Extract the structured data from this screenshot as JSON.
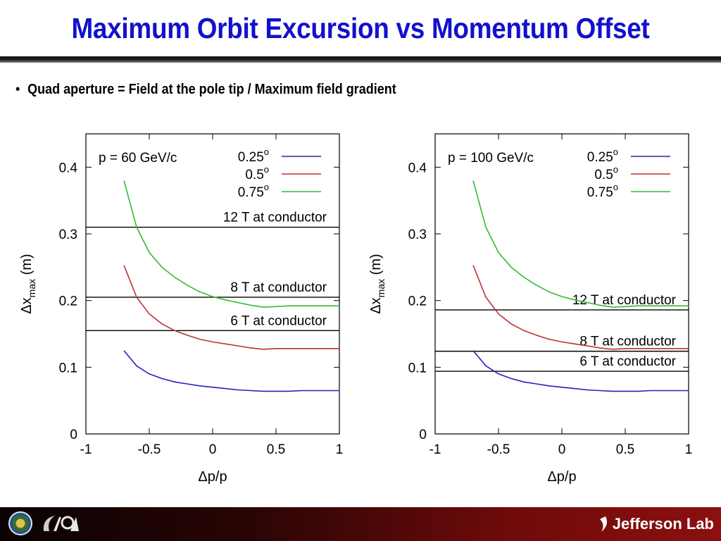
{
  "slide": {
    "title": "Maximum Orbit Excursion vs Momentum Offset",
    "bullet": "Quad aperture = Field at the pole tip / Maximum field gradient",
    "footer": {
      "logos": [
        "doe-seal",
        "jsa-logo"
      ],
      "brand": "Jefferson Lab"
    }
  },
  "colors": {
    "title": "#1111cc",
    "series_025": "#2222bb",
    "series_05": "#bb3333",
    "series_075": "#33bb33",
    "threshold": "#000000",
    "footer_dark": "#1a0303",
    "footer_red": "#8c1010"
  },
  "chart_data": [
    {
      "type": "line",
      "annotation": "p = 60 GeV/c",
      "xlabel": "Δp/p",
      "ylabel": "Δx",
      "ylabel_sub": "max",
      "ylabel_unit": " (m)",
      "xlim": [
        -1,
        1
      ],
      "ylim": [
        0,
        0.45
      ],
      "xticks": [
        -1,
        -0.5,
        0,
        0.5,
        1
      ],
      "xtick_labels": [
        "-1",
        "-0.5",
        "0",
        "0.5",
        "1"
      ],
      "yticks": [
        0,
        0.1,
        0.2,
        0.3,
        0.4
      ],
      "ytick_labels": [
        "0",
        "0.1",
        "0.2",
        "0.3",
        "0.4"
      ],
      "legend_position": "top-right",
      "series": [
        {
          "name": "0.25",
          "name_sup": "o",
          "color": "#2222bb",
          "x": [
            -0.7,
            -0.6,
            -0.5,
            -0.4,
            -0.3,
            -0.2,
            -0.1,
            0,
            0.1,
            0.2,
            0.3,
            0.4,
            0.5,
            0.6,
            0.7,
            0.8,
            0.9,
            1.0
          ],
          "y": [
            0.125,
            0.102,
            0.09,
            0.083,
            0.078,
            0.075,
            0.072,
            0.07,
            0.068,
            0.066,
            0.065,
            0.064,
            0.064,
            0.064,
            0.065,
            0.065,
            0.065,
            0.065
          ]
        },
        {
          "name": "0.5",
          "name_sup": "o",
          "color": "#bb3333",
          "x": [
            -0.7,
            -0.6,
            -0.5,
            -0.4,
            -0.3,
            -0.2,
            -0.1,
            0,
            0.1,
            0.2,
            0.3,
            0.4,
            0.5,
            0.6,
            0.7,
            0.8,
            0.9,
            1.0
          ],
          "y": [
            0.253,
            0.205,
            0.18,
            0.165,
            0.155,
            0.148,
            0.142,
            0.138,
            0.135,
            0.132,
            0.129,
            0.127,
            0.128,
            0.128,
            0.128,
            0.128,
            0.128,
            0.128
          ]
        },
        {
          "name": "0.75",
          "name_sup": "o",
          "color": "#33bb33",
          "x": [
            -0.7,
            -0.6,
            -0.5,
            -0.4,
            -0.3,
            -0.2,
            -0.1,
            0,
            0.1,
            0.2,
            0.3,
            0.4,
            0.5,
            0.6,
            0.7,
            0.8,
            0.9,
            1.0
          ],
          "y": [
            0.38,
            0.31,
            0.272,
            0.25,
            0.235,
            0.223,
            0.213,
            0.206,
            0.201,
            0.197,
            0.193,
            0.19,
            0.191,
            0.192,
            0.192,
            0.192,
            0.192,
            0.192
          ]
        }
      ],
      "thresholds": [
        {
          "label": "12 T at conductor",
          "y": 0.31
        },
        {
          "label": "8 T at conductor",
          "y": 0.205
        },
        {
          "label": "6 T at conductor",
          "y": 0.155
        }
      ]
    },
    {
      "type": "line",
      "annotation": "p = 100 GeV/c",
      "xlabel": "Δp/p",
      "ylabel": "Δx",
      "ylabel_sub": "max",
      "ylabel_unit": " (m)",
      "xlim": [
        -1,
        1
      ],
      "ylim": [
        0,
        0.45
      ],
      "xticks": [
        -1,
        -0.5,
        0,
        0.5,
        1
      ],
      "xtick_labels": [
        "-1",
        "-0.5",
        "0",
        "0.5",
        "1"
      ],
      "yticks": [
        0,
        0.1,
        0.2,
        0.3,
        0.4
      ],
      "ytick_labels": [
        "0",
        "0.1",
        "0.2",
        "0.3",
        "0.4"
      ],
      "legend_position": "top-right",
      "series": [
        {
          "name": "0.25",
          "name_sup": "o",
          "color": "#2222bb",
          "x": [
            -0.7,
            -0.6,
            -0.5,
            -0.4,
            -0.3,
            -0.2,
            -0.1,
            0,
            0.1,
            0.2,
            0.3,
            0.4,
            0.5,
            0.6,
            0.7,
            0.8,
            0.9,
            1.0
          ],
          "y": [
            0.125,
            0.102,
            0.09,
            0.083,
            0.078,
            0.075,
            0.072,
            0.07,
            0.068,
            0.066,
            0.065,
            0.064,
            0.064,
            0.064,
            0.065,
            0.065,
            0.065,
            0.065
          ]
        },
        {
          "name": "0.5",
          "name_sup": "o",
          "color": "#bb3333",
          "x": [
            -0.7,
            -0.6,
            -0.5,
            -0.4,
            -0.3,
            -0.2,
            -0.1,
            0,
            0.1,
            0.2,
            0.3,
            0.4,
            0.5,
            0.6,
            0.7,
            0.8,
            0.9,
            1.0
          ],
          "y": [
            0.253,
            0.205,
            0.18,
            0.165,
            0.155,
            0.148,
            0.142,
            0.138,
            0.135,
            0.132,
            0.129,
            0.127,
            0.128,
            0.128,
            0.128,
            0.128,
            0.128,
            0.128
          ]
        },
        {
          "name": "0.75",
          "name_sup": "o",
          "color": "#33bb33",
          "x": [
            -0.7,
            -0.6,
            -0.5,
            -0.4,
            -0.3,
            -0.2,
            -0.1,
            0,
            0.1,
            0.2,
            0.3,
            0.4,
            0.5,
            0.6,
            0.7,
            0.8,
            0.9,
            1.0
          ],
          "y": [
            0.38,
            0.31,
            0.272,
            0.25,
            0.235,
            0.223,
            0.213,
            0.206,
            0.201,
            0.197,
            0.193,
            0.19,
            0.191,
            0.192,
            0.192,
            0.192,
            0.192,
            0.192
          ]
        }
      ],
      "thresholds": [
        {
          "label": "12 T at conductor",
          "y": 0.186
        },
        {
          "label": "8 T at conductor",
          "y": 0.124
        },
        {
          "label": "6 T at conductor",
          "y": 0.094
        }
      ]
    }
  ]
}
